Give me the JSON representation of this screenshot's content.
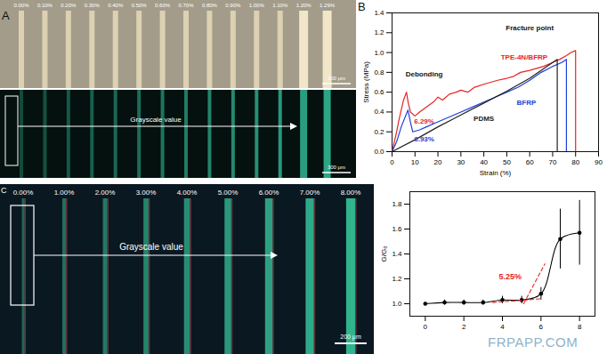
{
  "chart_data": [
    {
      "type": "line",
      "panel": "B",
      "x_label": "Strain (%)",
      "y_label": "Stress (MPa)",
      "xlim": [
        0,
        90
      ],
      "xticks": [
        0,
        10,
        20,
        30,
        40,
        50,
        60,
        70,
        80,
        90
      ],
      "ylim": [
        0,
        1.4
      ],
      "yticks": [
        {
          "value": 0,
          "label": "0.0"
        },
        {
          "value": 0.2,
          "label": "0.2"
        },
        {
          "value": 0.4,
          "label": "0.4"
        },
        {
          "value": 0.6,
          "label": "0.6"
        },
        {
          "value": 0.8,
          "label": "0.8"
        },
        {
          "value": 1.0,
          "label": "1.0"
        },
        {
          "value": 1.2,
          "label": "1.2"
        },
        {
          "value": 1.4,
          "label": "1.4"
        }
      ],
      "series": [
        {
          "name": "TPE-4N/BFRP",
          "color": "#e8231f",
          "x": [
            0,
            1,
            2,
            3,
            4,
            5,
            6.29,
            7,
            8,
            10,
            12,
            15,
            18,
            20,
            22,
            25,
            28,
            30,
            33,
            36,
            40,
            43,
            46,
            50,
            53,
            56,
            60,
            63,
            66,
            70,
            73,
            76,
            78,
            80,
            80
          ],
          "values": [
            0,
            0.1,
            0.2,
            0.32,
            0.42,
            0.52,
            0.6,
            0.5,
            0.4,
            0.36,
            0.4,
            0.45,
            0.5,
            0.55,
            0.52,
            0.58,
            0.6,
            0.62,
            0.6,
            0.65,
            0.68,
            0.7,
            0.72,
            0.74,
            0.76,
            0.8,
            0.82,
            0.84,
            0.86,
            0.9,
            0.93,
            0.97,
            1.0,
            1.02,
            0
          ]
        },
        {
          "name": "BFRP",
          "color": "#1f3fd8",
          "x": [
            0,
            2,
            4,
            6.93,
            8,
            9,
            12,
            15,
            20,
            25,
            30,
            35,
            40,
            45,
            50,
            55,
            60,
            65,
            70,
            74,
            76,
            76
          ],
          "values": [
            0,
            0.1,
            0.25,
            0.42,
            0.3,
            0.2,
            0.22,
            0.25,
            0.3,
            0.35,
            0.4,
            0.45,
            0.5,
            0.55,
            0.6,
            0.65,
            0.72,
            0.8,
            0.86,
            0.9,
            0.93,
            0
          ]
        },
        {
          "name": "PDMS",
          "color": "#222222",
          "x": [
            0,
            10,
            20,
            30,
            40,
            50,
            60,
            70,
            72,
            72
          ],
          "values": [
            0,
            0.12,
            0.25,
            0.37,
            0.49,
            0.61,
            0.74,
            0.9,
            0.93,
            0
          ]
        }
      ],
      "annotations": [
        {
          "text": "Debonding",
          "x": 14,
          "y": 0.78,
          "color": "#111111"
        },
        {
          "text": "6.29%",
          "x": 14,
          "y": 0.31,
          "color": "#e8231f"
        },
        {
          "text": "6.93%",
          "x": 14,
          "y": 0.13,
          "color": "#1f3fd8"
        },
        {
          "text": "Fracture point",
          "x": 60,
          "y": 1.25,
          "color": "#111111"
        }
      ]
    },
    {
      "type": "line",
      "x_label": null,
      "y_label": "G/G₀",
      "xlim": [
        -0.8,
        8.8
      ],
      "xticks": [
        0,
        2,
        4,
        6,
        8
      ],
      "ylim": [
        0.9,
        1.9
      ],
      "yticks": [
        {
          "value": 1.0,
          "label": "1.0"
        },
        {
          "value": 1.2,
          "label": "1.2"
        },
        {
          "value": 1.4,
          "label": "1.4"
        },
        {
          "value": 1.6,
          "label": "1.6"
        },
        {
          "value": 1.8,
          "label": "1.8"
        }
      ],
      "series": [
        {
          "color": "#000000",
          "marker": "circle",
          "line_style": "solid",
          "x": [
            0,
            1,
            2,
            3,
            4,
            5,
            6,
            7,
            8
          ],
          "values": [
            1.0,
            1.01,
            1.01,
            1.01,
            1.03,
            1.03,
            1.08,
            1.52,
            1.57
          ],
          "errors": [
            0.01,
            0.02,
            0.02,
            0.02,
            0.03,
            0.03,
            0.05,
            0.24,
            0.26
          ]
        },
        {
          "color": "#e8231f",
          "line_style": "dashed",
          "x": [
            3.5,
            6.0
          ],
          "values": [
            1.01,
            1.04
          ]
        },
        {
          "color": "#e8231f",
          "line_style": "dashed",
          "x": [
            5.1,
            6.2
          ],
          "values": [
            1.0,
            1.32
          ]
        }
      ],
      "annotations": [
        {
          "text": "5.25%",
          "x": 4.4,
          "y": 1.22,
          "color": "#e8231f"
        }
      ]
    }
  ],
  "micrographs": [
    {
      "panel": "A",
      "strain_labels": [
        "0.00%",
        "0.10%",
        "0.20%",
        "0.30%",
        "0.40%",
        "0.50%",
        "0.60%",
        "0.70%",
        "0.80%",
        "0.90%",
        "1.00%",
        "1.10%",
        "1.20%",
        "1.29%"
      ],
      "arrow_label": "Grayscale value",
      "scale_bars": [
        "300 μm",
        "300 μm"
      ]
    },
    {
      "panel": "C",
      "strain_labels": [
        "0.00%",
        "1.00%",
        "2.00%",
        "3.00%",
        "4.00%",
        "5.00%",
        "6.00%",
        "7.00%",
        "8.00%"
      ],
      "arrow_label": "Grayscale value",
      "scale_bars": [
        "200 μm"
      ]
    }
  ],
  "watermark": "FRPAPP.COM"
}
